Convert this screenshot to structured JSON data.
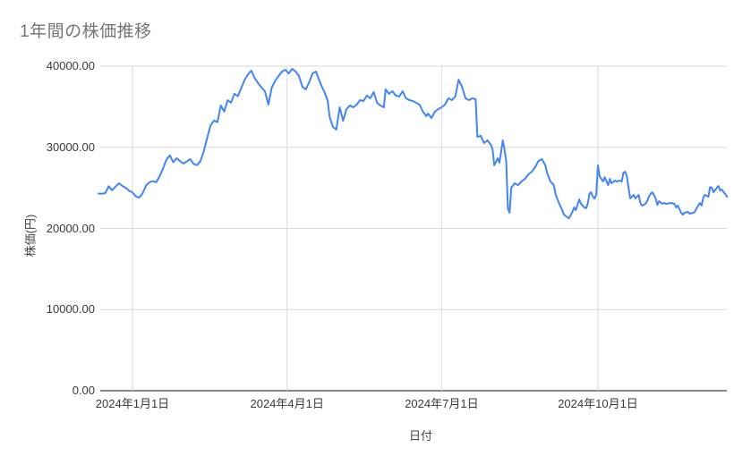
{
  "title": "1年間の株価推移",
  "colors": {
    "background": "#ffffff",
    "line": "#4285f4",
    "title_text": "#757575",
    "tick_text": "#3a3a3a",
    "axis_title_text": "#444444",
    "grid": "#dadada",
    "axis_line": "#424242"
  },
  "chart_data": {
    "type": "line",
    "title": "1年間の株価推移",
    "xlabel": "日付",
    "ylabel": "株価(円)",
    "ylim": [
      0,
      40000
    ],
    "grid": true,
    "legend_position": "none",
    "y_ticks": [
      {
        "value": 40000,
        "label": "40000.00"
      },
      {
        "value": 30000,
        "label": "30000.00"
      },
      {
        "value": 20000,
        "label": "20000.00"
      },
      {
        "value": 10000,
        "label": "10000.00"
      },
      {
        "value": 0,
        "label": "0.00"
      }
    ],
    "x_ticks": [
      {
        "date": "2024-01-01",
        "label": "2024年1月1日"
      },
      {
        "date": "2024-04-01",
        "label": "2024年4月1日"
      },
      {
        "date": "2024-07-01",
        "label": "2024年7月1日"
      },
      {
        "date": "2024-10-01",
        "label": "2024年10月1日"
      }
    ],
    "x": [
      "2023-12-12",
      "2023-12-14",
      "2023-12-16",
      "2023-12-18",
      "2023-12-20",
      "2023-12-22",
      "2023-12-24",
      "2023-12-26",
      "2023-12-28",
      "2023-12-30",
      "2024-01-01",
      "2024-01-03",
      "2024-01-05",
      "2024-01-07",
      "2024-01-09",
      "2024-01-11",
      "2024-01-13",
      "2024-01-15",
      "2024-01-17",
      "2024-01-19",
      "2024-01-21",
      "2024-01-23",
      "2024-01-25",
      "2024-01-27",
      "2024-01-29",
      "2024-01-31",
      "2024-02-02",
      "2024-02-04",
      "2024-02-06",
      "2024-02-08",
      "2024-02-10",
      "2024-02-12",
      "2024-02-14",
      "2024-02-16",
      "2024-02-18",
      "2024-02-20",
      "2024-02-22",
      "2024-02-24",
      "2024-02-26",
      "2024-02-28",
      "2024-03-01",
      "2024-03-03",
      "2024-03-05",
      "2024-03-07",
      "2024-03-09",
      "2024-03-11",
      "2024-03-13",
      "2024-03-15",
      "2024-03-17",
      "2024-03-19",
      "2024-03-21",
      "2024-03-23",
      "2024-03-25",
      "2024-03-27",
      "2024-03-29",
      "2024-03-31",
      "2024-04-02",
      "2024-04-04",
      "2024-04-06",
      "2024-04-08",
      "2024-04-10",
      "2024-04-12",
      "2024-04-14",
      "2024-04-16",
      "2024-04-18",
      "2024-04-20",
      "2024-04-21",
      "2024-04-23",
      "2024-04-25",
      "2024-04-26",
      "2024-04-28",
      "2024-04-30",
      "2024-05-02",
      "2024-05-04",
      "2024-05-06",
      "2024-05-08",
      "2024-05-10",
      "2024-05-12",
      "2024-05-14",
      "2024-05-16",
      "2024-05-18",
      "2024-05-20",
      "2024-05-22",
      "2024-05-24",
      "2024-05-26",
      "2024-05-28",
      "2024-05-29",
      "2024-05-31",
      "2024-06-02",
      "2024-06-04",
      "2024-06-06",
      "2024-06-08",
      "2024-06-10",
      "2024-06-12",
      "2024-06-14",
      "2024-06-16",
      "2024-06-18",
      "2024-06-20",
      "2024-06-22",
      "2024-06-23",
      "2024-06-25",
      "2024-06-27",
      "2024-06-29",
      "2024-07-01",
      "2024-07-03",
      "2024-07-05",
      "2024-07-07",
      "2024-07-09",
      "2024-07-11",
      "2024-07-13",
      "2024-07-15",
      "2024-07-17",
      "2024-07-19",
      "2024-07-21",
      "2024-07-22",
      "2024-07-24",
      "2024-07-26",
      "2024-07-28",
      "2024-07-30",
      "2024-07-31",
      "2024-08-01",
      "2024-08-03",
      "2024-08-04",
      "2024-08-05",
      "2024-08-06",
      "2024-08-07",
      "2024-08-08",
      "2024-08-09",
      "2024-08-10",
      "2024-08-11",
      "2024-08-13",
      "2024-08-15",
      "2024-08-17",
      "2024-08-19",
      "2024-08-21",
      "2024-08-23",
      "2024-08-25",
      "2024-08-27",
      "2024-08-29",
      "2024-08-31",
      "2024-09-01",
      "2024-09-03",
      "2024-09-04",
      "2024-09-05",
      "2024-09-06",
      "2024-09-08",
      "2024-09-10",
      "2024-09-11",
      "2024-09-13",
      "2024-09-14",
      "2024-09-16",
      "2024-09-17",
      "2024-09-18",
      "2024-09-20",
      "2024-09-21",
      "2024-09-23",
      "2024-09-24",
      "2024-09-25",
      "2024-09-26",
      "2024-09-27",
      "2024-09-28",
      "2024-09-29",
      "2024-09-30",
      "2024-10-01",
      "2024-10-02",
      "2024-10-04",
      "2024-10-05",
      "2024-10-07",
      "2024-10-08",
      "2024-10-09",
      "2024-10-11",
      "2024-10-12",
      "2024-10-14",
      "2024-10-15",
      "2024-10-16",
      "2024-10-17",
      "2024-10-18",
      "2024-10-19",
      "2024-10-20",
      "2024-10-22",
      "2024-10-23",
      "2024-10-24",
      "2024-10-25",
      "2024-10-26",
      "2024-10-27",
      "2024-10-29",
      "2024-10-30",
      "2024-10-31",
      "2024-11-01",
      "2024-11-02",
      "2024-11-03",
      "2024-11-04",
      "2024-11-05",
      "2024-11-06",
      "2024-11-08",
      "2024-11-09",
      "2024-11-10",
      "2024-11-12",
      "2024-11-13",
      "2024-11-15",
      "2024-11-16",
      "2024-11-17",
      "2024-11-19",
      "2024-11-20",
      "2024-11-21",
      "2024-11-23",
      "2024-11-24",
      "2024-11-26",
      "2024-11-27",
      "2024-11-28",
      "2024-11-30",
      "2024-12-01",
      "2024-12-02",
      "2024-12-03",
      "2024-12-05",
      "2024-12-06",
      "2024-12-07",
      "2024-12-08",
      "2024-12-10",
      "2024-12-11",
      "2024-12-12",
      "2024-12-13",
      "2024-12-14",
      "2024-12-15",
      "2024-12-16"
    ],
    "values": [
      24300,
      24280,
      24350,
      25200,
      24700,
      25150,
      25550,
      25250,
      25000,
      24650,
      24450,
      23950,
      23800,
      24350,
      25300,
      25700,
      25820,
      25700,
      26450,
      27400,
      28500,
      29000,
      28150,
      28650,
      28300,
      28000,
      28250,
      28540,
      27950,
      27800,
      28300,
      29500,
      31200,
      32700,
      33300,
      33100,
      35150,
      34400,
      35800,
      35500,
      36600,
      36300,
      37300,
      38300,
      39000,
      39450,
      38500,
      37900,
      37350,
      36900,
      35260,
      37350,
      38200,
      38780,
      39330,
      39560,
      39100,
      39670,
      39340,
      38790,
      37460,
      37130,
      38010,
      39120,
      39340,
      38230,
      37680,
      36800,
      35700,
      33830,
      32510,
      32180,
      34930,
      33280,
      34710,
      35150,
      34930,
      35260,
      35810,
      35700,
      36370,
      36040,
      36800,
      35480,
      35150,
      34930,
      37130,
      36590,
      36920,
      36370,
      36260,
      36920,
      36040,
      35810,
      35700,
      35480,
      35260,
      34380,
      33830,
      34160,
      33610,
      34380,
      34710,
      34930,
      35260,
      36040,
      35810,
      36260,
      38340,
      37460,
      36040,
      35810,
      36040,
      35920,
      31300,
      31420,
      30520,
      30850,
      30300,
      29750,
      27770,
      28650,
      28100,
      29420,
      30850,
      29750,
      28320,
      22480,
      21930,
      25010,
      25560,
      25340,
      25780,
      26110,
      26660,
      26990,
      27540,
      28320,
      28540,
      27800,
      26880,
      25780,
      25560,
      25340,
      24240,
      23140,
      22260,
      21710,
      21380,
      21270,
      22040,
      22590,
      22260,
      23580,
      23030,
      22590,
      22480,
      23030,
      24240,
      24460,
      23910,
      23690,
      24130,
      27770,
      26440,
      25780,
      26330,
      25340,
      26110,
      25560,
      25890,
      25780,
      25890,
      25780,
      26880,
      26990,
      26440,
      25010,
      23690,
      24130,
      23690,
      23910,
      24130,
      23140,
      22810,
      23030,
      23360,
      23910,
      24240,
      24460,
      24130,
      23690,
      22900,
      23360,
      23030,
      23140,
      23030,
      23100,
      23140,
      23030,
      22590,
      22810,
      21930,
      21710,
      21930,
      22040,
      21820,
      21930,
      22040,
      22480,
      23140,
      22810,
      23800,
      24130,
      23910,
      25100,
      25010,
      24460,
      25000,
      25230,
      24680,
      24790,
      24460,
      24240,
      23900
    ]
  }
}
